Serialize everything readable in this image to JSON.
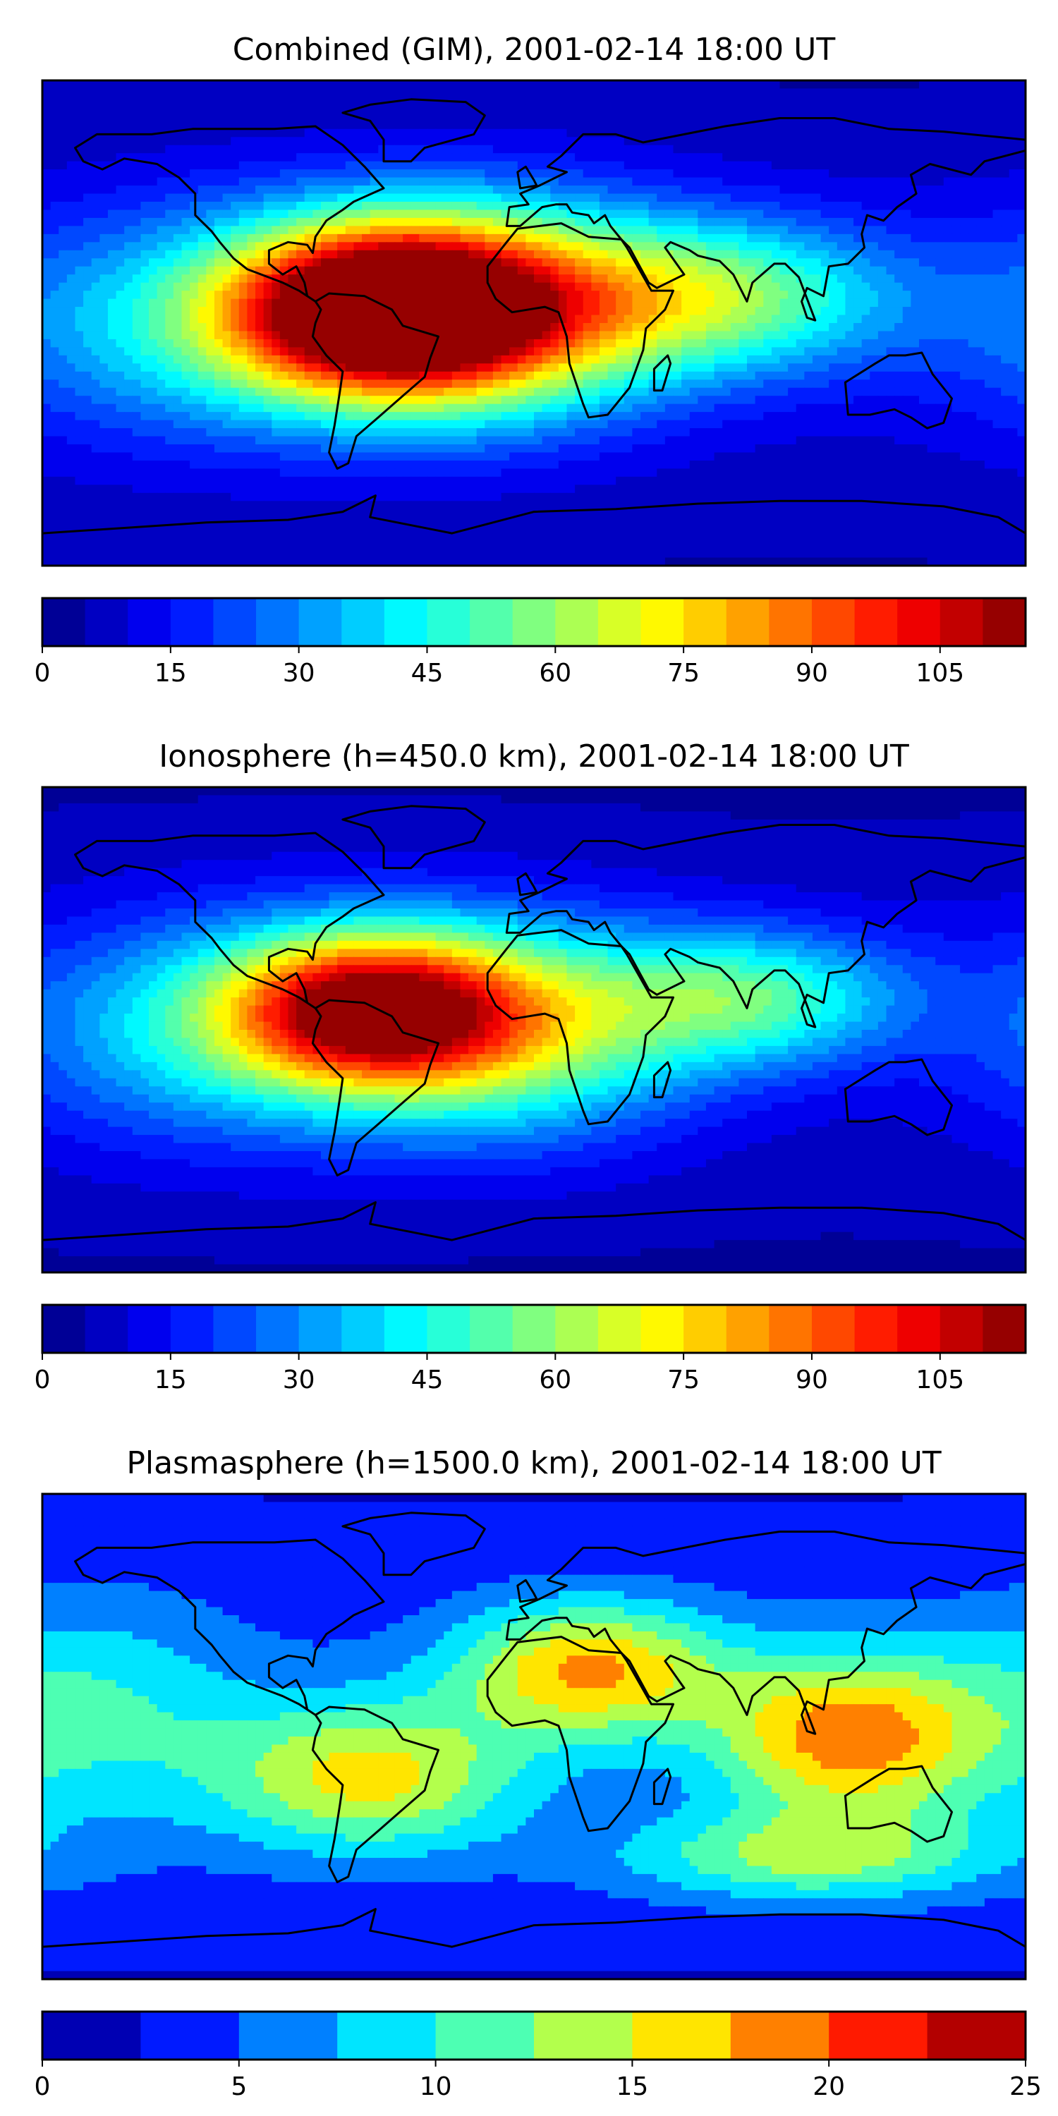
{
  "panels": [
    {
      "title": "Combined (GIM), 2001-02-14 18:00 UT",
      "colorbar": {
        "vmin": 0,
        "vmax": 115,
        "step": 5,
        "ticks": [
          "0",
          "15",
          "30",
          "45",
          "60",
          "75",
          "90",
          "105"
        ]
      },
      "field_peaks": [
        {
          "lon": -55,
          "lat": 5,
          "value": 104,
          "sx": 40,
          "sy": 22
        },
        {
          "lon": -15,
          "lat": 5,
          "value": 70,
          "sx": 50,
          "sy": 28
        },
        {
          "lon": 70,
          "lat": 10,
          "value": 52,
          "sx": 45,
          "sy": 20
        },
        {
          "lon": -120,
          "lat": 0,
          "value": 40,
          "sx": 60,
          "sy": 30
        }
      ],
      "field_base": 8
    },
    {
      "title": "Ionosphere  (h=450.0 km), 2001-02-14 18:00 UT",
      "colorbar": {
        "vmin": 0,
        "vmax": 115,
        "step": 5,
        "ticks": [
          "0",
          "15",
          "30",
          "45",
          "60",
          "75",
          "90",
          "105"
        ]
      },
      "field_peaks": [
        {
          "lon": -60,
          "lat": 8,
          "value": 88,
          "sx": 38,
          "sy": 20
        },
        {
          "lon": -10,
          "lat": 0,
          "value": 58,
          "sx": 50,
          "sy": 28
        },
        {
          "lon": 80,
          "lat": 12,
          "value": 48,
          "sx": 40,
          "sy": 18
        },
        {
          "lon": -120,
          "lat": 0,
          "value": 38,
          "sx": 55,
          "sy": 30
        }
      ],
      "field_base": 7
    },
    {
      "title": "Plasmasphere (h=1500.0 km), 2001-02-14 18:00 UT",
      "colorbar": {
        "vmin": 0,
        "vmax": 25,
        "step": 2.5,
        "ticks": [
          "0",
          "5",
          "10",
          "15",
          "20",
          "25"
        ]
      },
      "field_peaks": [
        {
          "lon": 20,
          "lat": 25,
          "value": 18,
          "sx": 35,
          "sy": 18
        },
        {
          "lon": 115,
          "lat": 0,
          "value": 19,
          "sx": 35,
          "sy": 22
        },
        {
          "lon": -60,
          "lat": -15,
          "value": 16,
          "sx": 40,
          "sy": 20
        },
        {
          "lon": -160,
          "lat": 10,
          "value": 10,
          "sx": 40,
          "sy": 30
        },
        {
          "lon": 100,
          "lat": -45,
          "value": 13,
          "sx": 50,
          "sy": 12
        }
      ],
      "field_base": 4
    }
  ],
  "colormap": "jet",
  "map": {
    "projection": "PlateCarree",
    "lon_range": [
      -180,
      180
    ],
    "lat_range": [
      -90,
      90
    ]
  }
}
